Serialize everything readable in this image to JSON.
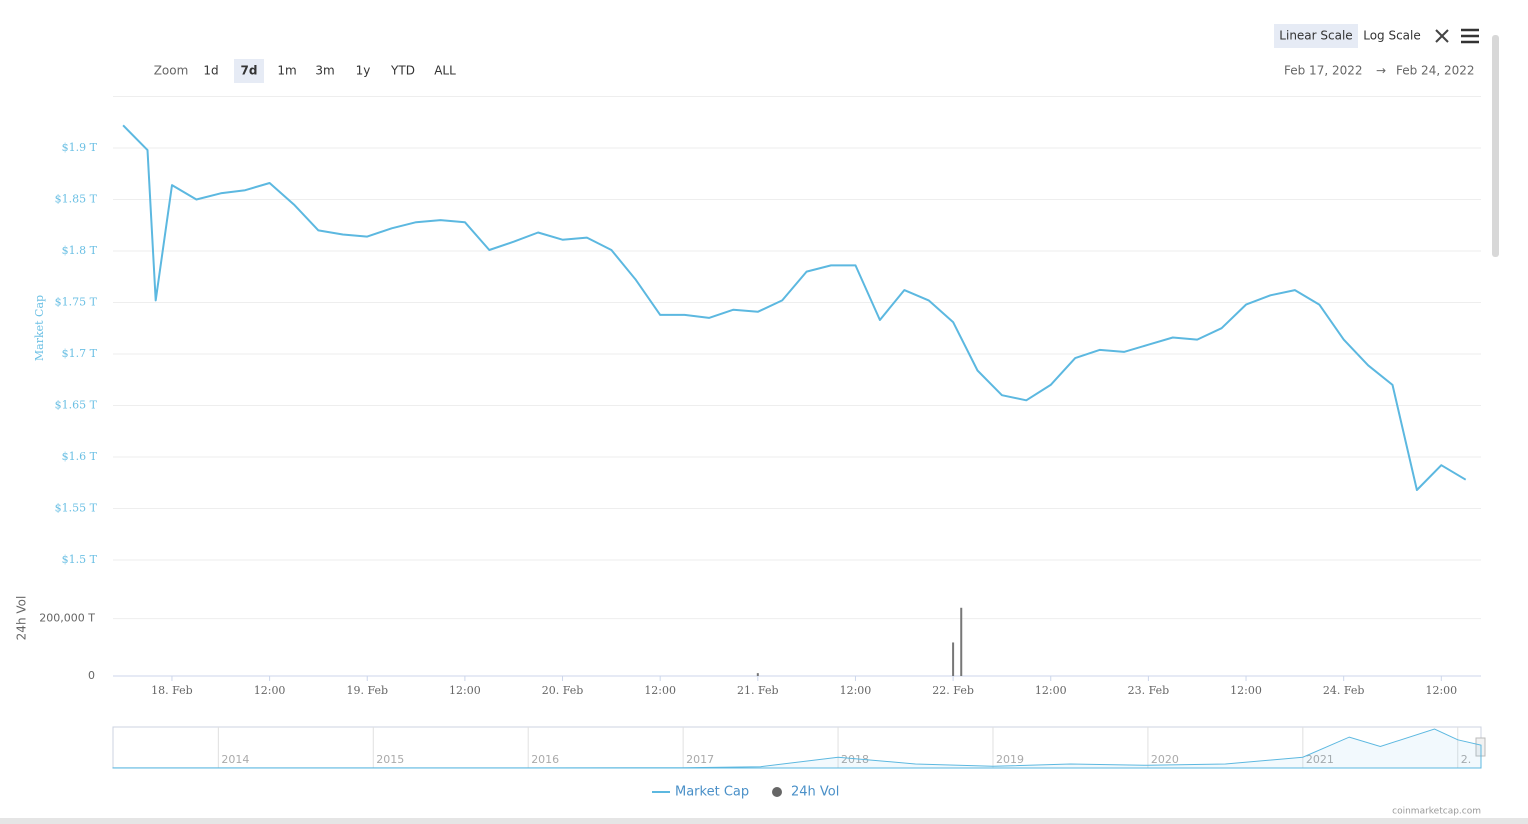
{
  "ui": {
    "zoom_label": "Zoom",
    "zoom_buttons": [
      "1d",
      "7d",
      "1m",
      "3m",
      "1y",
      "YTD",
      "ALL"
    ],
    "zoom_active": 1,
    "scale_buttons": [
      "Linear Scale",
      "Log Scale"
    ],
    "scale_active": 0,
    "range_from": "Feb 17, 2022",
    "range_arrow": "→",
    "range_to": "Feb 24, 2022",
    "credit": "coinmarketcap.com"
  },
  "chart_data": [
    {
      "type": "line",
      "ylabel": "Market Cap",
      "grid": true,
      "xlim": [
        "2022-02-17 17:00",
        "2022-02-24 17:00"
      ],
      "xticks": [
        {
          "value": "2022-02-18 00:00",
          "label": "18. Feb"
        },
        {
          "value": "2022-02-18 12:00",
          "label": "12:00"
        },
        {
          "value": "2022-02-19 00:00",
          "label": "19. Feb"
        },
        {
          "value": "2022-02-19 12:00",
          "label": "12:00"
        },
        {
          "value": "2022-02-20 00:00",
          "label": "20. Feb"
        },
        {
          "value": "2022-02-20 12:00",
          "label": "12:00"
        },
        {
          "value": "2022-02-21 00:00",
          "label": "21. Feb"
        },
        {
          "value": "2022-02-21 12:00",
          "label": "12:00"
        },
        {
          "value": "2022-02-22 00:00",
          "label": "22. Feb"
        },
        {
          "value": "2022-02-22 12:00",
          "label": "12:00"
        },
        {
          "value": "2022-02-23 00:00",
          "label": "23. Feb"
        },
        {
          "value": "2022-02-23 12:00",
          "label": "12:00"
        },
        {
          "value": "2022-02-24 00:00",
          "label": "24. Feb"
        },
        {
          "value": "2022-02-24 12:00",
          "label": "12:00"
        }
      ],
      "ylim": [
        1.5,
        1.95
      ],
      "yticks": [
        {
          "value": 1.5,
          "label": "$1.5 T"
        },
        {
          "value": 1.55,
          "label": "$1.55 T"
        },
        {
          "value": 1.6,
          "label": "$1.6 T"
        },
        {
          "value": 1.65,
          "label": "$1.65 T"
        },
        {
          "value": 1.7,
          "label": "$1.7 T"
        },
        {
          "value": 1.75,
          "label": "$1.75 T"
        },
        {
          "value": 1.8,
          "label": "$1.8 T"
        },
        {
          "value": 1.85,
          "label": "$1.85 T"
        },
        {
          "value": 1.9,
          "label": "$1.9 T"
        }
      ],
      "x": [
        "2022-02-17 18:00",
        "2022-02-17 21:00",
        "2022-02-17 22:00",
        "2022-02-18 00:00",
        "2022-02-18 03:00",
        "2022-02-18 06:00",
        "2022-02-18 09:00",
        "2022-02-18 12:00",
        "2022-02-18 15:00",
        "2022-02-18 18:00",
        "2022-02-18 21:00",
        "2022-02-19 00:00",
        "2022-02-19 03:00",
        "2022-02-19 06:00",
        "2022-02-19 09:00",
        "2022-02-19 12:00",
        "2022-02-19 15:00",
        "2022-02-19 18:00",
        "2022-02-19 21:00",
        "2022-02-20 00:00",
        "2022-02-20 03:00",
        "2022-02-20 06:00",
        "2022-02-20 09:00",
        "2022-02-20 12:00",
        "2022-02-20 15:00",
        "2022-02-20 18:00",
        "2022-02-20 21:00",
        "2022-02-21 00:00",
        "2022-02-21 03:00",
        "2022-02-21 06:00",
        "2022-02-21 09:00",
        "2022-02-21 12:00",
        "2022-02-21 15:00",
        "2022-02-21 18:00",
        "2022-02-21 21:00",
        "2022-02-22 00:00",
        "2022-02-22 03:00",
        "2022-02-22 06:00",
        "2022-02-22 09:00",
        "2022-02-22 12:00",
        "2022-02-22 15:00",
        "2022-02-22 18:00",
        "2022-02-22 21:00",
        "2022-02-23 00:00",
        "2022-02-23 03:00",
        "2022-02-23 06:00",
        "2022-02-23 09:00",
        "2022-02-23 12:00",
        "2022-02-23 15:00",
        "2022-02-23 18:00",
        "2022-02-23 21:00",
        "2022-02-24 00:00",
        "2022-02-24 03:00",
        "2022-02-24 06:00",
        "2022-02-24 09:00",
        "2022-02-24 12:00",
        "2022-02-24 15:00"
      ],
      "series": [
        {
          "name": "Market Cap",
          "color": "#5cb8e0",
          "values": [
            1.922,
            1.898,
            1.752,
            1.864,
            1.85,
            1.856,
            1.859,
            1.866,
            1.845,
            1.82,
            1.816,
            1.814,
            1.822,
            1.828,
            1.83,
            1.828,
            1.801,
            1.809,
            1.818,
            1.811,
            1.813,
            1.801,
            1.772,
            1.738,
            1.738,
            1.735,
            1.743,
            1.741,
            1.752,
            1.78,
            1.786,
            1.786,
            1.733,
            1.762,
            1.752,
            1.731,
            1.684,
            1.66,
            1.655,
            1.67,
            1.696,
            1.704,
            1.702,
            1.709,
            1.716,
            1.714,
            1.725,
            1.748,
            1.757,
            1.762,
            1.748,
            1.714,
            1.689,
            1.67,
            1.568,
            1.592,
            1.578
          ]
        }
      ]
    },
    {
      "type": "bar",
      "ylabel": "24h Vol",
      "grid": true,
      "xlim": [
        "2022-02-17 17:00",
        "2022-02-24 17:00"
      ],
      "ylim": [
        0,
        300000
      ],
      "yticks": [
        0,
        {
          "value": 200000,
          "label": "200,000 T"
        }
      ],
      "x": [
        "2022-02-21 00:00",
        "2022-02-22 00:00",
        "2022-02-22 01:00"
      ],
      "series": [
        {
          "name": "24h Vol",
          "color": "#777777",
          "values": [
            10000,
            117000,
            238000
          ]
        }
      ]
    },
    {
      "type": "area",
      "color": "#5cb8e0",
      "xlim": [
        2013.32,
        2022.15
      ],
      "xticks": [
        2014,
        2015,
        2016,
        2017,
        2018,
        2019,
        2020,
        2021,
        {
          "value": 2022,
          "label": "2."
        }
      ],
      "x": [
        2013.32,
        2014,
        2015,
        2016,
        2017,
        2017.5,
        2018,
        2018.5,
        2019,
        2019.5,
        2020,
        2020.5,
        2021,
        2021.3,
        2021.5,
        2021.85,
        2022,
        2022.15
      ],
      "values": [
        0.01,
        0.01,
        0.005,
        0.007,
        0.02,
        0.1,
        0.8,
        0.3,
        0.13,
        0.3,
        0.2,
        0.3,
        0.8,
        2.3,
        1.6,
        2.9,
        2.1,
        1.7
      ]
    }
  ]
}
